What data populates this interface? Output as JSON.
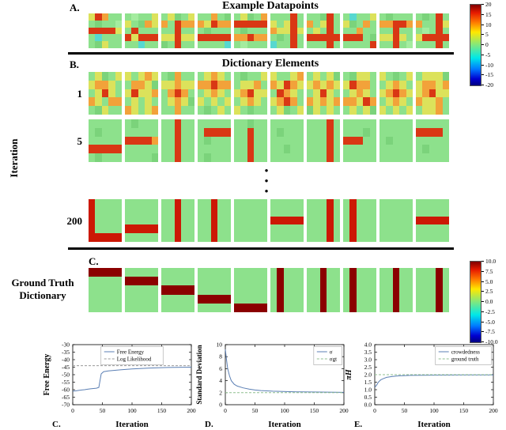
{
  "panelA": {
    "label": "A.",
    "title": "Example Datapoints",
    "tiles": [
      [
        "yrogg",
        "gfggi",
        "rrrry",
        "gcggg",
        "gfygg"
      ],
      [
        "giggy",
        "ygfoy",
        "grggg",
        "ryrrr",
        "ggcgg"
      ],
      [
        "gyfgy",
        "ogroo",
        "ggrgg",
        "yyryy",
        "fgrgg"
      ],
      [
        "ggogf",
        "oyroo",
        "gfggg",
        "rrrrr",
        "ggggc"
      ],
      [
        "gyfgo",
        "rrrrr",
        "gfggg",
        "ooroo",
        "giggg"
      ],
      [
        "gggrg",
        "ygyrg",
        "oyyry",
        "gfgrg",
        "cggrg"
      ],
      [
        "ggfrg",
        "ogyrg",
        "gygrg",
        "rrrrr",
        "gggrg"
      ],
      [
        "gcggy",
        "yfgog",
        "ggogg",
        "rrrgf",
        "ggggr"
      ],
      [
        "gfggg",
        "oorro",
        "ggrgg",
        "yyryg",
        "ggrgi"
      ],
      [
        "gfgrg",
        "oggry",
        "gigrg",
        "yrrrr",
        "gggrg"
      ]
    ]
  },
  "colorbarTop": {
    "ticks": [
      "20",
      "15",
      "10",
      "5",
      "0",
      "-5",
      "-10",
      "-15",
      "-20"
    ]
  },
  "panelB": {
    "label": "B.",
    "title": "Dictionary Elements",
    "ylabel": "Iteration",
    "dots": [
      "•",
      "•",
      "•"
    ],
    "rows": [
      {
        "label": "1",
        "tiles": [
          [
            "gyfgy",
            "yooyg",
            "gyryg",
            "oygoo",
            "gfygg"
          ],
          [
            "ygyoy",
            "gooyf",
            "yryyo",
            "gygyg",
            "oygyo"
          ],
          [
            "gfogg",
            "yyoyy",
            "gorog",
            "gyoyf",
            "ggogg"
          ],
          [
            "gyoyg",
            "ooroo",
            "gyoyg",
            "ygygy",
            "gfgyg"
          ],
          [
            "gfggy",
            "gyyog",
            "yoryy",
            "gyoyg",
            "ygfgg"
          ],
          [
            "yggyo",
            "oyroy",
            "groyg",
            "yorog",
            "gyfgy"
          ],
          [
            "gygyf",
            "yoyoy",
            "gyryg",
            "oyoyo",
            "fygyg"
          ],
          [
            "gfyyg",
            "yroog",
            "gyoyg",
            "ooyro",
            "gygyf"
          ],
          [
            "ygfgy",
            "gyoyg",
            "yoroy",
            "gyoyg",
            "ygygy"
          ],
          [
            "gyyyf",
            "yooyo",
            "yoryy",
            "oyyog",
            "gyyog"
          ]
        ]
      },
      {
        "label": "5",
        "tiles": [
          [
            "ggggg",
            "gfggg",
            "ggggg",
            "rrrrr",
            "gfggg"
          ],
          [
            "gfggg",
            "ggggg",
            "rrrro",
            "ggggg",
            "ggggf"
          ],
          [
            "ggrgg",
            "ggrgg",
            "ggrgg",
            "ggrgg",
            "ggrgg"
          ],
          [
            "ggggg",
            "grrrr",
            "gfggg",
            "ggggg",
            "gfggg"
          ],
          [
            "ggfgg",
            "ggrgg",
            "ggrgg",
            "ggrgg",
            "ggrgg"
          ],
          [
            "ggggg",
            "gfggg",
            "ggggg",
            "ggfgg",
            "ggggg"
          ],
          [
            "gggrg",
            "gggrg",
            "gggrg",
            "gggrg",
            "gggrg"
          ],
          [
            "ggggg",
            "gggfg",
            "rrrgg",
            "ggggg",
            "ggggg"
          ],
          [
            "ggggg",
            "ggggg",
            "gfggg",
            "ggggg",
            "ggggg"
          ],
          [
            "ggggg",
            "rrrrg",
            "ggggg",
            "gfggg",
            "ggggg"
          ]
        ]
      },
      {
        "label": "200",
        "tiles": [
          [
            "Rgggg",
            "Rgggg",
            "Rgggg",
            "Rgggg",
            "RRRRR"
          ],
          [
            "ggggg",
            "ggggg",
            "ggggg",
            "RRRRR",
            "ggggg"
          ],
          [
            "ggRgg",
            "ggRgg",
            "ggRgg",
            "ggRgg",
            "ggRgg"
          ],
          [
            "ggRgg",
            "ggRgg",
            "ggRgg",
            "ggRgg",
            "ggRgg"
          ],
          [
            "ggggg",
            "ggggg",
            "ggggg",
            "ggggg",
            "ggggg"
          ],
          [
            "ggggg",
            "ggggg",
            "RRRRR",
            "ggggg",
            "ggggg"
          ],
          [
            "gggRg",
            "gggRg",
            "gggRg",
            "gggRg",
            "gggRg"
          ],
          [
            "gRggg",
            "gRggg",
            "gRggg",
            "gRggg",
            "gRggg"
          ],
          [
            "ggggg",
            "ggggg",
            "ggggg",
            "ggggg",
            "ggggg"
          ],
          [
            "ggggg",
            "ggggg",
            "RRRRR",
            "ggggg",
            "ggggg"
          ]
        ]
      }
    ]
  },
  "panelC": {
    "label": "C.",
    "title": "Ground Truth Dictionary",
    "tiles": [
      [
        "mmmmm",
        "ggggg",
        "ggggg",
        "ggggg",
        "ggggg"
      ],
      [
        "ggggg",
        "mmmmm",
        "ggggg",
        "ggggg",
        "ggggg"
      ],
      [
        "ggggg",
        "ggggg",
        "mmmmm",
        "ggggg",
        "ggggg"
      ],
      [
        "ggggg",
        "ggggg",
        "ggggg",
        "mmmmm",
        "ggggg"
      ],
      [
        "ggggg",
        "ggggg",
        "ggggg",
        "ggggg",
        "mmmmm"
      ],
      [
        "gmggg",
        "gmggg",
        "gmggg",
        "gmggg",
        "gmggg"
      ],
      [
        "ggmgg",
        "ggmgg",
        "ggmgg",
        "ggmgg",
        "ggmgg"
      ],
      [
        "gmggg",
        "gmggg",
        "gmggg",
        "gmggg",
        "gmggg"
      ],
      [
        "ggmgg",
        "ggmgg",
        "ggmgg",
        "ggmgg",
        "ggmgg"
      ],
      [
        "gggmg",
        "gggmg",
        "gggmg",
        "gggmg",
        "gggmg"
      ]
    ]
  },
  "colorbarBottom": {
    "ticks": [
      "10.0",
      "7.5",
      "5.0",
      "2.5",
      "0.0",
      "-2.5",
      "-5.0",
      "-7.5",
      "-10.0"
    ]
  },
  "palette": {
    "g": "#8de18c",
    "f": "#7bd37b",
    "i": "#a4ec9f",
    "y": "#dce25b",
    "o": "#f2a23a",
    "r": "#d93714",
    "R": "#cc1805",
    "c": "#57d8d0",
    "C": "#3aa2df",
    "b": "#2a55d8",
    "m": "#8b0000"
  },
  "chart_data": [
    {
      "type": "line",
      "panel_label": "C.",
      "ylabel": "Free Energy",
      "ylabel_size": 10,
      "xlabel": "Iteration",
      "xlim": [
        0,
        200
      ],
      "ylim": [
        -70,
        -30
      ],
      "xticks": [
        0,
        50,
        100,
        150,
        200
      ],
      "xtick_labels": [
        "0",
        "50",
        "100",
        "150",
        "200"
      ],
      "yticks": [
        -30,
        -35,
        -40,
        -45,
        -50,
        -55,
        -60,
        -65,
        -70
      ],
      "ytick_labels": [
        "-30",
        "-35",
        "-40",
        "-45",
        "-50",
        "-55",
        "-60",
        "-65",
        "-70"
      ],
      "legend_pos": "top-center",
      "series": [
        {
          "name": "Free Energy",
          "style": "solid",
          "color": "#5b7fb4",
          "x": [
            0,
            5,
            10,
            15,
            20,
            25,
            30,
            35,
            40,
            44,
            46,
            48,
            52,
            60,
            80,
            100,
            130,
            160,
            200
          ],
          "y": [
            -61,
            -60.8,
            -60.5,
            -60.2,
            -60,
            -59.7,
            -59.4,
            -59.2,
            -59,
            -58.5,
            -54,
            -49.5,
            -48,
            -47.5,
            -46.8,
            -46.2,
            -45.6,
            -45.2,
            -45
          ]
        },
        {
          "name": "Log Likelihood",
          "style": "dashed",
          "color": "#999999",
          "x": [
            0,
            200
          ],
          "y": [
            -44,
            -44
          ]
        }
      ]
    },
    {
      "type": "line",
      "panel_label": "D.",
      "ylabel": "Standard Deviation",
      "ylabel_size": 9,
      "xlabel": "Iteration",
      "xlim": [
        0,
        200
      ],
      "ylim": [
        0,
        10
      ],
      "xticks": [
        0,
        50,
        100,
        150,
        200
      ],
      "xtick_labels": [
        "0",
        "50",
        "100",
        "150",
        "200"
      ],
      "yticks": [
        0,
        2,
        4,
        6,
        8,
        10
      ],
      "ytick_labels": [
        "0",
        "2",
        "4",
        "6",
        "8",
        "10"
      ],
      "legend_pos": "top-right",
      "series": [
        {
          "name": "σ",
          "style": "solid",
          "color": "#5b7fb4",
          "x": [
            0,
            2,
            4,
            7,
            10,
            15,
            20,
            30,
            40,
            50,
            60,
            80,
            120,
            160,
            200
          ],
          "y": [
            9.2,
            7.5,
            6,
            4.8,
            4,
            3.4,
            3.1,
            2.8,
            2.6,
            2.45,
            2.35,
            2.25,
            2.15,
            2.1,
            2.05
          ]
        },
        {
          "name": "σgt",
          "style": "dashed",
          "color": "#8fbf8f",
          "x": [
            0,
            200
          ],
          "y": [
            2,
            2
          ]
        }
      ]
    },
    {
      "type": "line",
      "panel_label": "E.",
      "ylabel": "πH",
      "ylabel_size": 10,
      "ylabel_italic": true,
      "xlabel": "Iteration",
      "xlim": [
        0,
        200
      ],
      "ylim": [
        0,
        4
      ],
      "xticks": [
        0,
        50,
        100,
        150,
        200
      ],
      "xtick_labels": [
        "0",
        "50",
        "100",
        "150",
        "200"
      ],
      "yticks": [
        0,
        0.5,
        1,
        1.5,
        2,
        2.5,
        3,
        3.5,
        4
      ],
      "ytick_labels": [
        "0.0",
        "0.5",
        "1.0",
        "1.5",
        "2.0",
        "2.5",
        "3.0",
        "3.5",
        "4.0"
      ],
      "legend_pos": "top-right",
      "series": [
        {
          "name": "crowdedness",
          "style": "solid",
          "color": "#5b7fb4",
          "x": [
            0,
            3,
            6,
            10,
            15,
            20,
            30,
            40,
            60,
            100,
            150,
            200
          ],
          "y": [
            1.15,
            1.3,
            1.5,
            1.65,
            1.75,
            1.82,
            1.88,
            1.92,
            1.95,
            1.97,
            1.98,
            1.98
          ]
        },
        {
          "name": "ground truth",
          "style": "dashed",
          "color": "#8fbf8f",
          "x": [
            0,
            200
          ],
          "y": [
            2,
            2
          ]
        }
      ]
    }
  ]
}
